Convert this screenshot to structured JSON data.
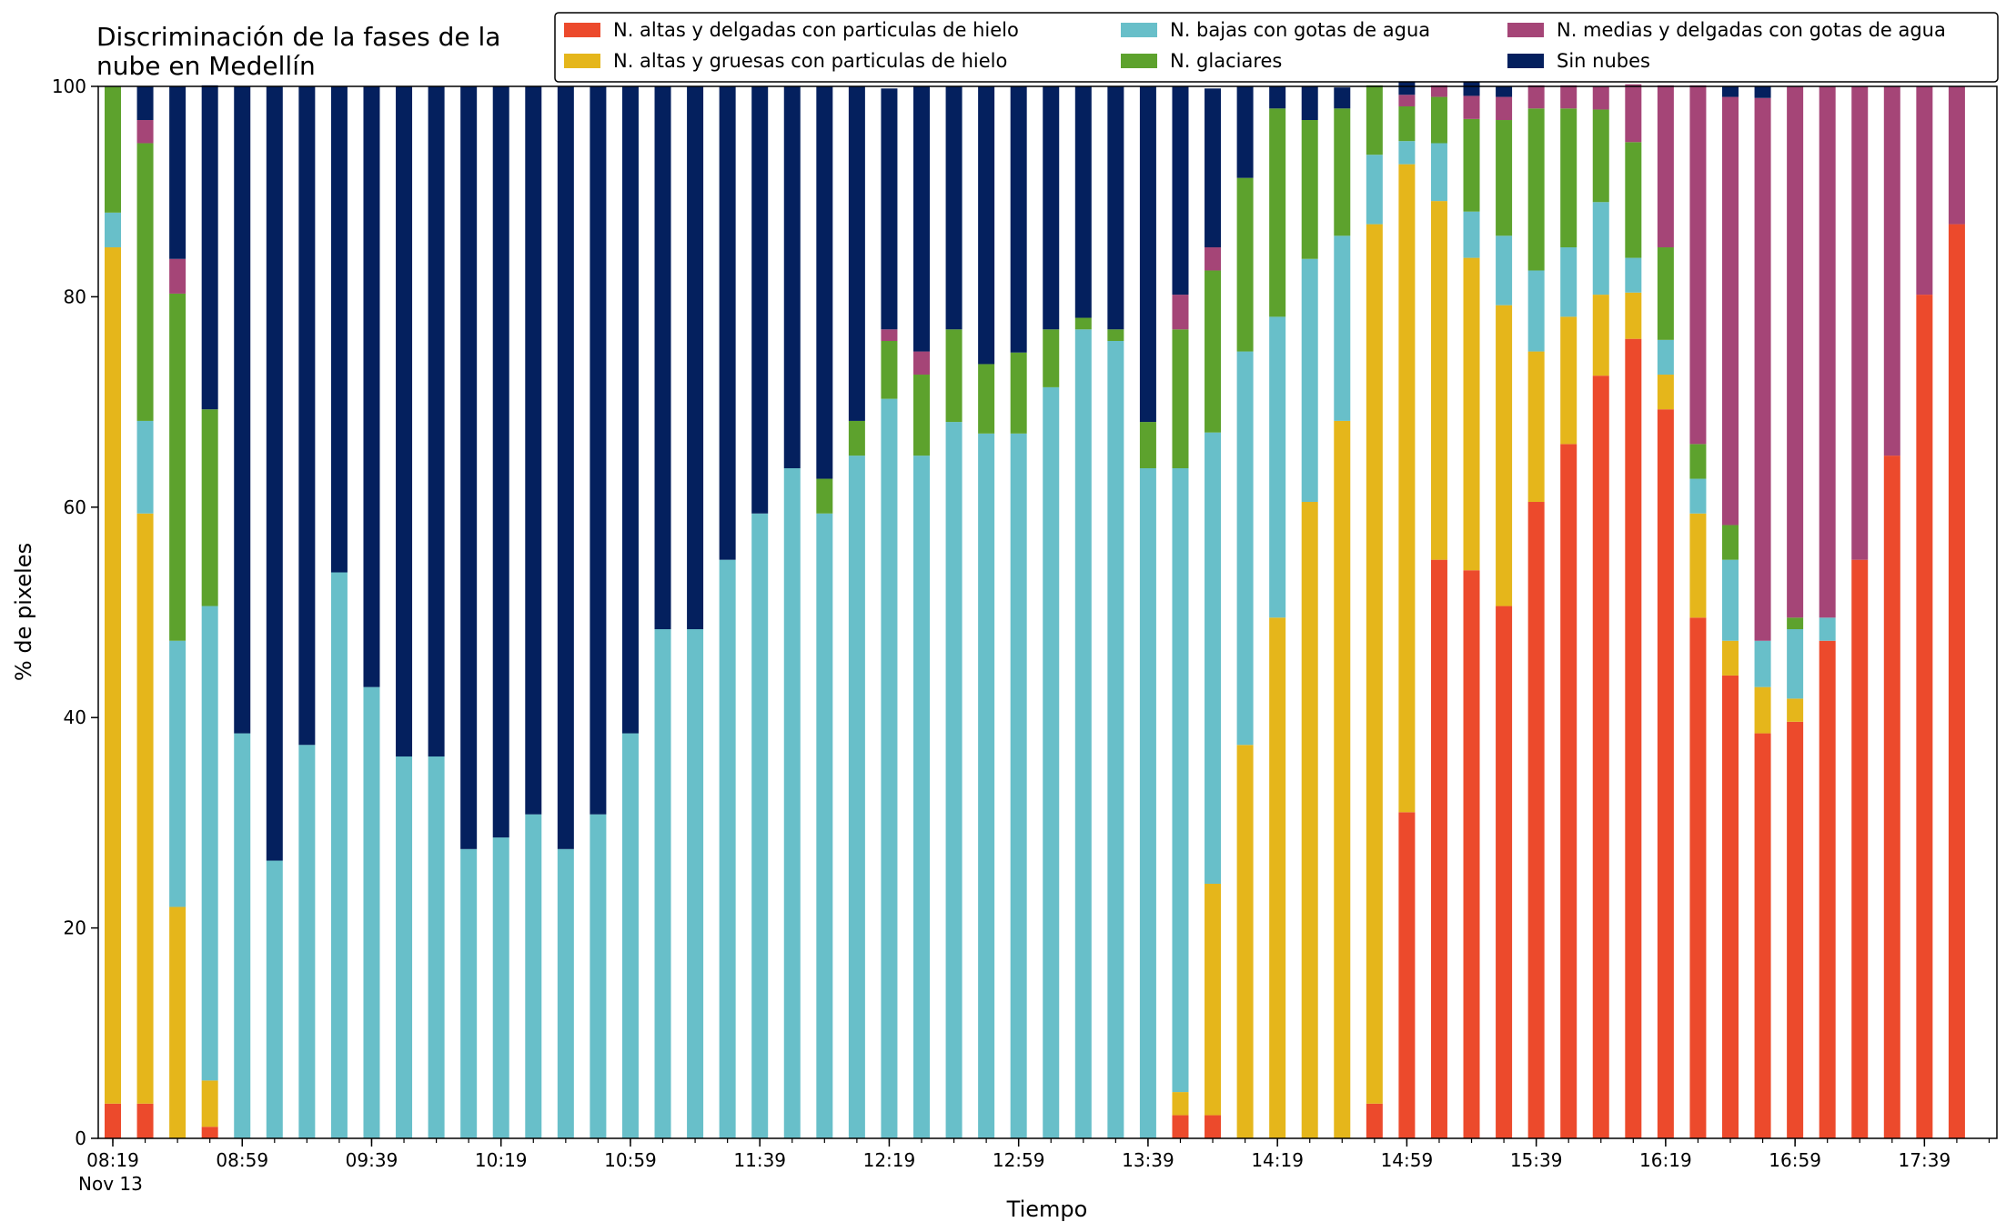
{
  "chart_data": {
    "type": "bar",
    "stacked": true,
    "title_line1": "Discriminación de la fases de la",
    "title_line2": "nube en Medellín",
    "xlabel": "Tiempo",
    "ylabel": "% de pixeles",
    "ylim": [
      0,
      100
    ],
    "yticks": [
      0,
      20,
      40,
      60,
      80,
      100
    ],
    "grid": false,
    "legend_position": "top-right",
    "x_start": "08:19",
    "x_step_minutes": 10,
    "xtick_labels": [
      "08:19",
      "08:59",
      "09:39",
      "10:19",
      "10:59",
      "11:39",
      "12:19",
      "12:59",
      "13:39",
      "14:19",
      "14:59",
      "15:39",
      "16:19",
      "16:59",
      "17:39"
    ],
    "xtick_date": "Nov 13",
    "series": [
      {
        "name": "N. altas y delgadas con particulas de hielo",
        "color": "#ec4a2c",
        "values": [
          3.3,
          3.3,
          0,
          1.1,
          0,
          0,
          0,
          0,
          0,
          0,
          0,
          0,
          0,
          0,
          0,
          0,
          0,
          0,
          0,
          0,
          0,
          0,
          0,
          0,
          0,
          0,
          0,
          0,
          0,
          0,
          0,
          0,
          0,
          2.2,
          2.2,
          0,
          0,
          0,
          0,
          3.3,
          31,
          55,
          54,
          50.6,
          60.5,
          66,
          72.5,
          76,
          69.3,
          49.5,
          44,
          38.5,
          39.6,
          47.3,
          55,
          64.9,
          80.2,
          86.9
        ]
      },
      {
        "name": "N. altas y gruesas con particulas de hielo",
        "color": "#e5b61b",
        "values": [
          81.4,
          56.1,
          22,
          4.4,
          0,
          0,
          0,
          0,
          0,
          0,
          0,
          0,
          0,
          0,
          0,
          0,
          0,
          0,
          0,
          0,
          0,
          0,
          0,
          0,
          0,
          0,
          0,
          0,
          0,
          0,
          0,
          0,
          0,
          2.2,
          22,
          37.4,
          49.5,
          60.5,
          68.2,
          83.6,
          61.6,
          34.1,
          29.7,
          28.6,
          14.3,
          12.1,
          7.7,
          4.4,
          3.3,
          9.9,
          3.3,
          4.4,
          2.2,
          0,
          0,
          0,
          0,
          0
        ]
      },
      {
        "name": "N. bajas con gotas de agua",
        "color": "#68bfc9",
        "values": [
          3.3,
          8.8,
          25.3,
          45.1,
          38.5,
          26.4,
          37.4,
          53.8,
          42.9,
          36.3,
          36.3,
          27.5,
          28.6,
          30.8,
          27.5,
          30.8,
          38.5,
          48.4,
          48.4,
          55,
          59.4,
          63.7,
          59.4,
          64.9,
          70.3,
          64.9,
          68.1,
          67,
          67,
          71.4,
          76.9,
          75.8,
          63.7,
          59.3,
          42.9,
          37.4,
          28.6,
          23.1,
          17.6,
          6.6,
          2.2,
          5.5,
          4.4,
          6.6,
          7.7,
          6.6,
          8.8,
          3.3,
          3.3,
          3.3,
          7.7,
          4.4,
          6.6,
          2.2,
          0,
          0,
          0,
          0
        ]
      },
      {
        "name": "N. glaciares",
        "color": "#5da22d",
        "values": [
          12,
          26.4,
          33,
          18.7,
          0,
          0,
          0,
          0,
          0,
          0,
          0,
          0,
          0,
          0,
          0,
          0,
          0,
          0,
          0,
          0,
          0,
          0,
          3.3,
          3.3,
          5.5,
          7.7,
          8.8,
          6.6,
          7.7,
          5.5,
          1.1,
          1.1,
          4.4,
          13.2,
          15.4,
          16.5,
          19.8,
          13.2,
          12.1,
          6.6,
          3.3,
          4.4,
          8.8,
          11,
          15.4,
          13.2,
          8.8,
          11,
          8.8,
          3.3,
          3.3,
          0,
          1.1,
          0,
          0,
          0,
          0,
          0
        ]
      },
      {
        "name": "N. medias y delgadas con gotas de agua",
        "color": "#a54577",
        "values": [
          0,
          2.2,
          3.3,
          0,
          0,
          0,
          0,
          0,
          0,
          0,
          0,
          0,
          0,
          0,
          0,
          0,
          0,
          0,
          0,
          0,
          0,
          0,
          0,
          0,
          1.1,
          2.2,
          0,
          0,
          0,
          0,
          0,
          0,
          0,
          3.3,
          2.2,
          0,
          0,
          0,
          0,
          0,
          1.1,
          1.1,
          2.2,
          2.2,
          2.2,
          2.2,
          2.2,
          5.5,
          15.4,
          34.1,
          40.7,
          51.6,
          50.5,
          50.5,
          45,
          35.1,
          19.8,
          13.1
        ]
      },
      {
        "name": "Sin nubes",
        "color": "#04205e",
        "values": [
          0,
          3.2,
          16.4,
          30.8,
          61.5,
          73.6,
          62.6,
          46.2,
          57.1,
          63.7,
          63.7,
          72.5,
          71.4,
          69.2,
          72.5,
          69.2,
          61.5,
          51.6,
          51.6,
          45,
          40.6,
          36.3,
          37.3,
          31.8,
          22.9,
          25.2,
          23.1,
          26.4,
          25.3,
          23.1,
          22,
          23.1,
          31.9,
          19.8,
          15.1,
          8.7,
          2.1,
          3.2,
          2,
          0,
          1.8,
          0,
          3.1,
          1,
          0,
          0,
          0,
          0,
          0,
          0,
          1,
          1.1,
          0,
          0,
          0,
          0,
          0,
          0
        ]
      }
    ]
  }
}
